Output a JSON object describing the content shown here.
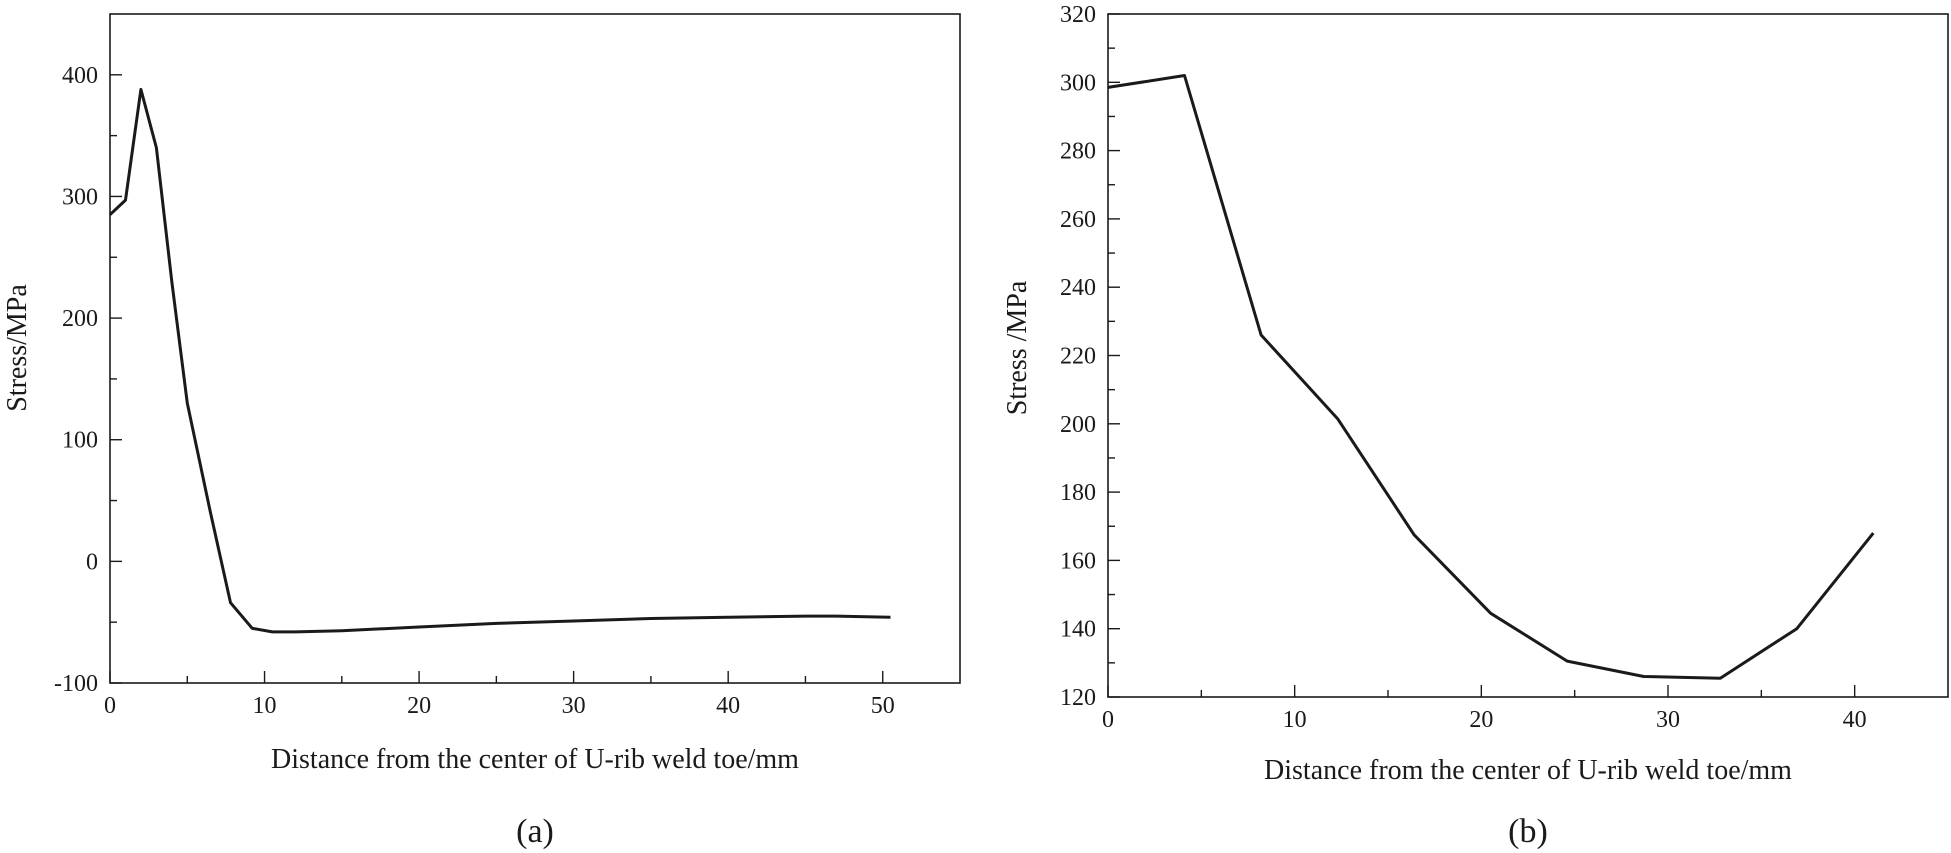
{
  "chart_data": [
    {
      "type": "line",
      "panel": "a",
      "caption": "(a)",
      "title": "",
      "xlabel": "Distance from the center of U-rib weld toe/mm",
      "ylabel": "Stress/MPa",
      "xlim": [
        0,
        55
      ],
      "ylim": [
        -100,
        450
      ],
      "xticks": [
        0,
        10,
        20,
        30,
        40,
        50
      ],
      "yticks": [
        -100,
        0,
        100,
        200,
        300,
        400
      ],
      "grid": false,
      "series": [
        {
          "x": [
            0,
            1,
            2,
            3,
            4,
            5,
            6.5,
            7.8,
            9.2,
            10.5,
            12,
            15,
            20,
            25,
            30,
            35,
            40,
            45,
            47,
            50.5
          ],
          "values": [
            285,
            297,
            388,
            340,
            230,
            130,
            40,
            -34,
            -55,
            -58,
            -58,
            -57,
            -54,
            -51,
            -49,
            -47,
            -46,
            -45,
            -45,
            -46
          ]
        }
      ]
    },
    {
      "type": "line",
      "panel": "b",
      "caption": "(b)",
      "title": "",
      "xlabel": "Distance from the center of U-rib weld toe/mm",
      "ylabel": "Stress /MPa",
      "xlim": [
        0,
        45
      ],
      "ylim": [
        120,
        320
      ],
      "xticks": [
        0,
        10,
        20,
        30,
        40
      ],
      "yticks": [
        120,
        140,
        160,
        180,
        200,
        220,
        240,
        260,
        280,
        300,
        320
      ],
      "grid": false,
      "series": [
        {
          "x": [
            0,
            4.1,
            8.2,
            12.3,
            16.4,
            20.5,
            24.6,
            28.7,
            32.8,
            36.9,
            41
          ],
          "values": [
            298.5,
            302,
            226,
            201.5,
            167.5,
            144.5,
            130.5,
            126,
            125.5,
            140,
            168
          ]
        }
      ]
    }
  ]
}
